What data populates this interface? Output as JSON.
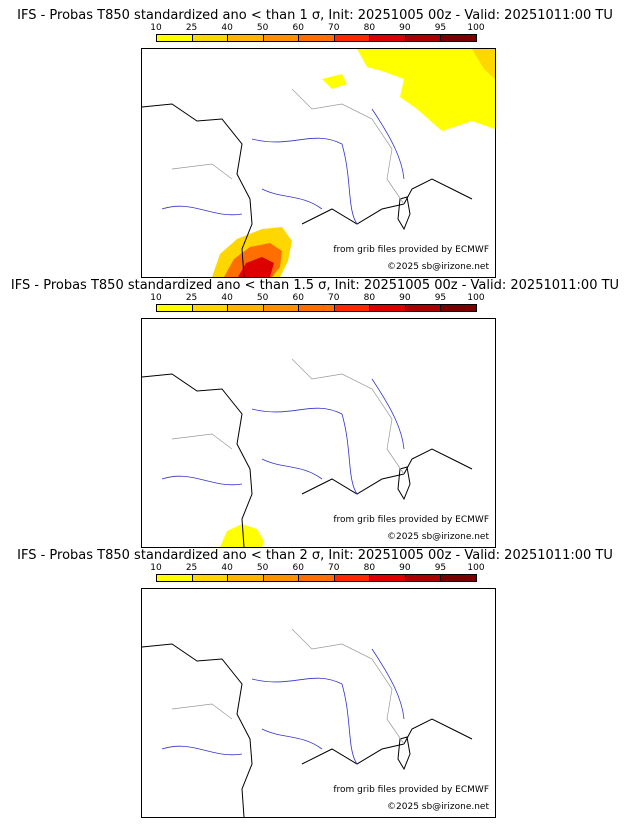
{
  "colorbar": {
    "labels": [
      "10",
      "25",
      "40",
      "50",
      "60",
      "70",
      "80",
      "90",
      "95",
      "100"
    ],
    "colors": [
      "#ffff00",
      "#ffd700",
      "#ffb400",
      "#ff9100",
      "#ff6e00",
      "#ff2800",
      "#dc0000",
      "#aa0000",
      "#7a0000",
      "#4a0000"
    ]
  },
  "credits": {
    "grib": "from grib files provided by ECMWF",
    "copyright": "©2025 sb@irizone.net"
  },
  "panels": [
    {
      "title": "IFS - Probas T850  standardized ano < than 1 σ, Init: 20251005 00z - Valid: 20251011:00 TU"
    },
    {
      "title": "IFS - Probas T850  standardized ano < than 1.5 σ, Init: 20251005 00z - Valid: 20251011:00 TU"
    },
    {
      "title": "IFS - Probas T850  standardized ano < than 2 σ, Init: 20251005 00z - Valid: 20251011:00 TU"
    }
  ]
}
